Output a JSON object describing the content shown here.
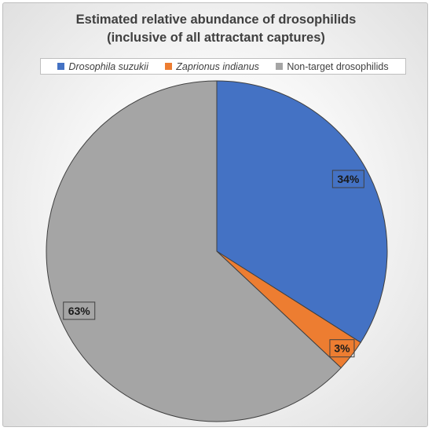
{
  "chart_data": {
    "type": "pie",
    "title": "Estimated relative abundance of drosophilids",
    "subtitle": "(inclusive of all attractant captures)",
    "legend_position": "top",
    "series": [
      {
        "name": "Drosophila suzukii",
        "value": 34,
        "label": "34%",
        "color": "#4472C4",
        "italic": true
      },
      {
        "name": "Zaprionus indianus",
        "value": 3,
        "label": "3%",
        "color": "#ED7D31",
        "italic": true
      },
      {
        "name": "Non-target drosophilids",
        "value": 63,
        "label": "63%",
        "color": "#A5A5A5",
        "italic": false
      }
    ],
    "start_angle_deg": 0,
    "direction": "clockwise"
  }
}
